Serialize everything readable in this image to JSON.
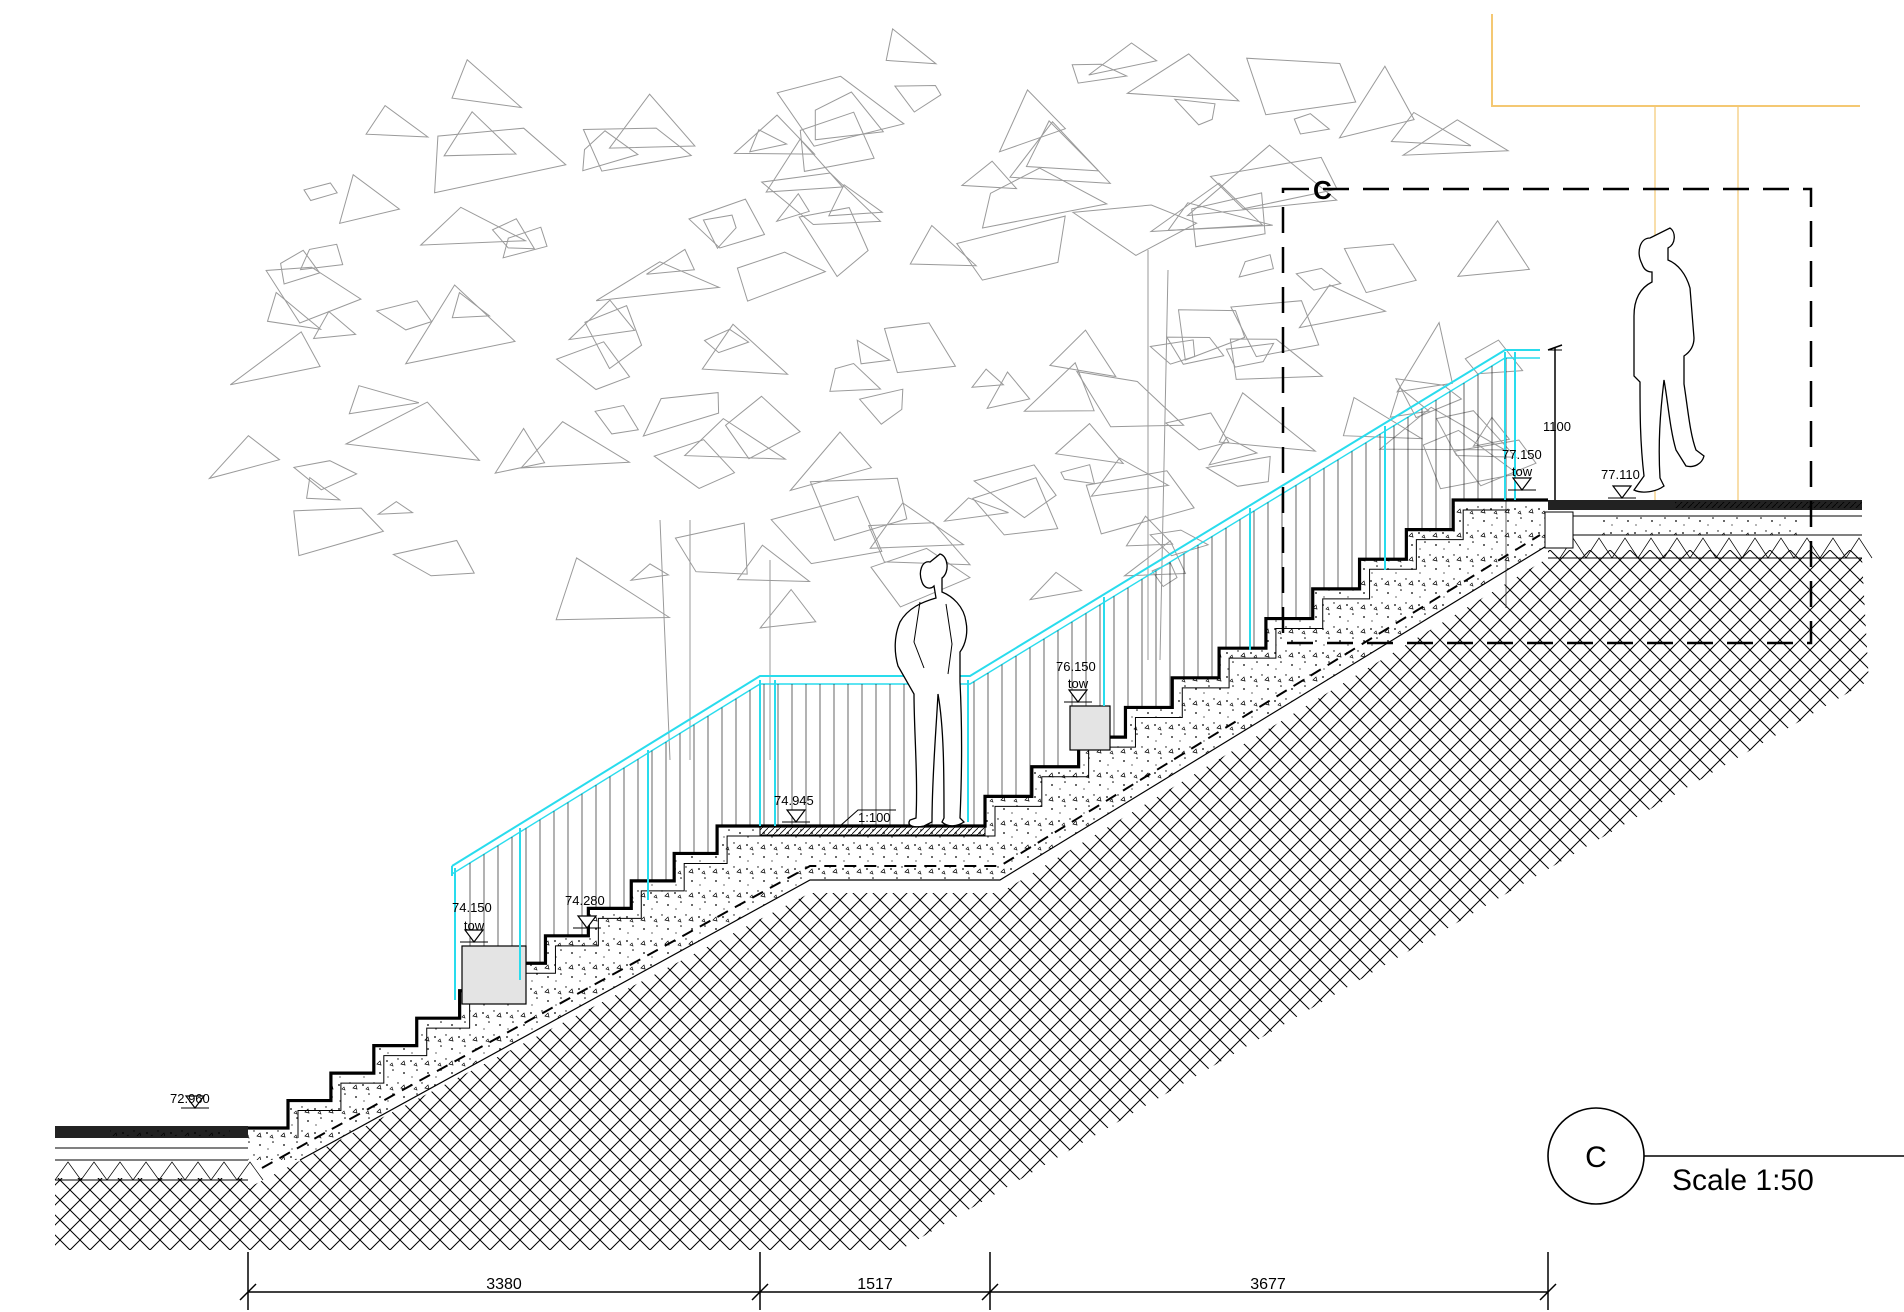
{
  "section_drawing": {
    "levels": [
      {
        "id": "lvl-72960",
        "value": "72.960",
        "sub": ""
      },
      {
        "id": "lvl-74150",
        "value": "74.150",
        "sub": "tow"
      },
      {
        "id": "lvl-74280",
        "value": "74.280",
        "sub": ""
      },
      {
        "id": "lvl-74945",
        "value": "74.945",
        "sub": ""
      },
      {
        "id": "lvl-76150",
        "value": "76.150",
        "sub": "tow"
      },
      {
        "id": "lvl-77150",
        "value": "77.150",
        "sub": "tow"
      },
      {
        "id": "lvl-77110",
        "value": "77.110",
        "sub": ""
      }
    ],
    "slope_label": "1:100",
    "rail_height": "1100",
    "dimensions": [
      "3380",
      "1517",
      "3677"
    ],
    "detail_callout": "C",
    "section_marker": {
      "letter": "C",
      "scale": "Scale 1:50"
    },
    "colors": {
      "handrail": "#29dced",
      "linework": "#000000",
      "tree": "#9a9a9a",
      "building": "#f4c873",
      "wall": "#e4e4e4"
    }
  }
}
